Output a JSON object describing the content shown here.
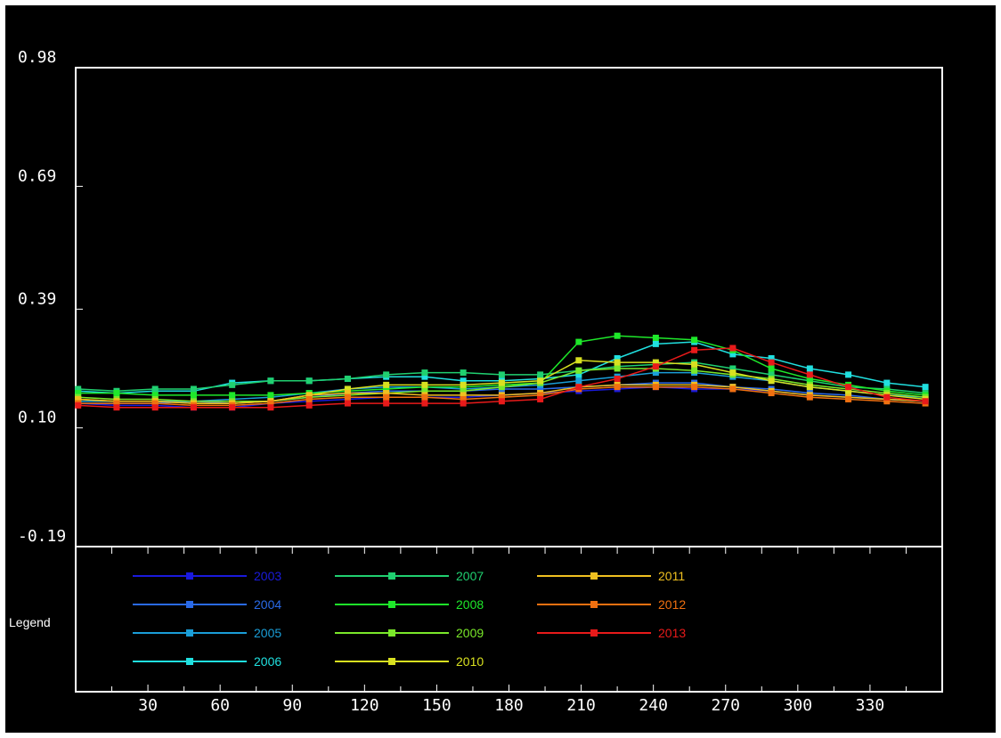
{
  "chart_data": {
    "type": "line",
    "title": "",
    "xlabel": "",
    "ylabel": "",
    "ylim": [
      -0.19,
      0.98
    ],
    "xlim": [
      0,
      360
    ],
    "y_ticks": [
      "0.98",
      "0.69",
      "0.39",
      "0.10",
      "-0.19"
    ],
    "x_ticks": [
      30,
      60,
      90,
      120,
      150,
      180,
      210,
      240,
      270,
      300,
      330
    ],
    "legend_title": "Legend",
    "legend_placement": "bottom",
    "grid": false,
    "x": [
      1,
      17,
      33,
      49,
      65,
      81,
      97,
      113,
      129,
      145,
      161,
      177,
      193,
      209,
      225,
      241,
      257,
      273,
      289,
      305,
      321,
      337,
      353
    ],
    "series": [
      {
        "name": "2003",
        "color": "#1a1adc",
        "values": [
          0.16,
          0.155,
          0.155,
          0.15,
          0.15,
          0.16,
          0.165,
          0.17,
          0.175,
          0.175,
          0.175,
          0.18,
          0.185,
          0.19,
          0.195,
          0.2,
          0.195,
          0.195,
          0.19,
          0.18,
          0.175,
          0.17,
          0.165
        ]
      },
      {
        "name": "2004",
        "color": "#2a6ae8",
        "values": [
          0.16,
          0.16,
          0.16,
          0.165,
          0.16,
          0.165,
          0.175,
          0.185,
          0.19,
          0.19,
          0.19,
          0.195,
          0.195,
          0.2,
          0.205,
          0.21,
          0.21,
          0.2,
          0.195,
          0.185,
          0.18,
          0.17,
          0.165
        ]
      },
      {
        "name": "2005",
        "color": "#1a9ed8",
        "values": [
          0.165,
          0.165,
          0.165,
          0.165,
          0.17,
          0.175,
          0.185,
          0.195,
          0.2,
          0.2,
          0.195,
          0.2,
          0.205,
          0.215,
          0.225,
          0.235,
          0.235,
          0.225,
          0.215,
          0.2,
          0.19,
          0.18,
          0.175
        ]
      },
      {
        "name": "2006",
        "color": "#20e0e0",
        "values": [
          0.19,
          0.185,
          0.19,
          0.19,
          0.21,
          0.215,
          0.215,
          0.22,
          0.225,
          0.225,
          0.215,
          0.215,
          0.22,
          0.23,
          0.27,
          0.305,
          0.31,
          0.28,
          0.27,
          0.245,
          0.23,
          0.21,
          0.2
        ]
      },
      {
        "name": "2007",
        "color": "#20d070",
        "values": [
          0.195,
          0.19,
          0.195,
          0.195,
          0.205,
          0.215,
          0.215,
          0.22,
          0.23,
          0.235,
          0.235,
          0.23,
          0.23,
          0.24,
          0.25,
          0.255,
          0.26,
          0.245,
          0.23,
          0.215,
          0.2,
          0.195,
          0.185
        ]
      },
      {
        "name": "2008",
        "color": "#1ee82a",
        "values": [
          0.185,
          0.185,
          0.18,
          0.18,
          0.18,
          0.18,
          0.185,
          0.19,
          0.195,
          0.2,
          0.2,
          0.205,
          0.21,
          0.31,
          0.325,
          0.32,
          0.315,
          0.29,
          0.245,
          0.22,
          0.205,
          0.19,
          0.18
        ]
      },
      {
        "name": "2009",
        "color": "#7ae82a",
        "values": [
          0.175,
          0.17,
          0.17,
          0.165,
          0.165,
          0.165,
          0.175,
          0.18,
          0.185,
          0.19,
          0.19,
          0.2,
          0.21,
          0.24,
          0.245,
          0.245,
          0.24,
          0.23,
          0.22,
          0.205,
          0.195,
          0.185,
          0.175
        ]
      },
      {
        "name": "2010",
        "color": "#d8e020",
        "values": [
          0.17,
          0.165,
          0.165,
          0.16,
          0.16,
          0.165,
          0.18,
          0.195,
          0.205,
          0.205,
          0.205,
          0.21,
          0.215,
          0.265,
          0.26,
          0.26,
          0.255,
          0.235,
          0.215,
          0.2,
          0.19,
          0.18,
          0.17
        ]
      },
      {
        "name": "2011",
        "color": "#f0c020",
        "values": [
          0.17,
          0.165,
          0.165,
          0.16,
          0.16,
          0.165,
          0.18,
          0.185,
          0.185,
          0.18,
          0.18,
          0.18,
          0.185,
          0.2,
          0.205,
          0.205,
          0.205,
          0.2,
          0.19,
          0.18,
          0.175,
          0.17,
          0.165
        ]
      },
      {
        "name": "2012",
        "color": "#f07010",
        "values": [
          0.16,
          0.16,
          0.16,
          0.155,
          0.155,
          0.16,
          0.17,
          0.175,
          0.175,
          0.175,
          0.17,
          0.175,
          0.18,
          0.195,
          0.2,
          0.2,
          0.2,
          0.195,
          0.185,
          0.175,
          0.17,
          0.165,
          0.16
        ]
      },
      {
        "name": "2013",
        "color": "#e81a1a",
        "values": [
          0.155,
          0.15,
          0.15,
          0.15,
          0.15,
          0.15,
          0.155,
          0.16,
          0.16,
          0.16,
          0.16,
          0.165,
          0.17,
          0.2,
          0.22,
          0.25,
          0.29,
          0.295,
          0.26,
          0.23,
          0.2,
          0.175,
          0.165
        ]
      }
    ]
  }
}
